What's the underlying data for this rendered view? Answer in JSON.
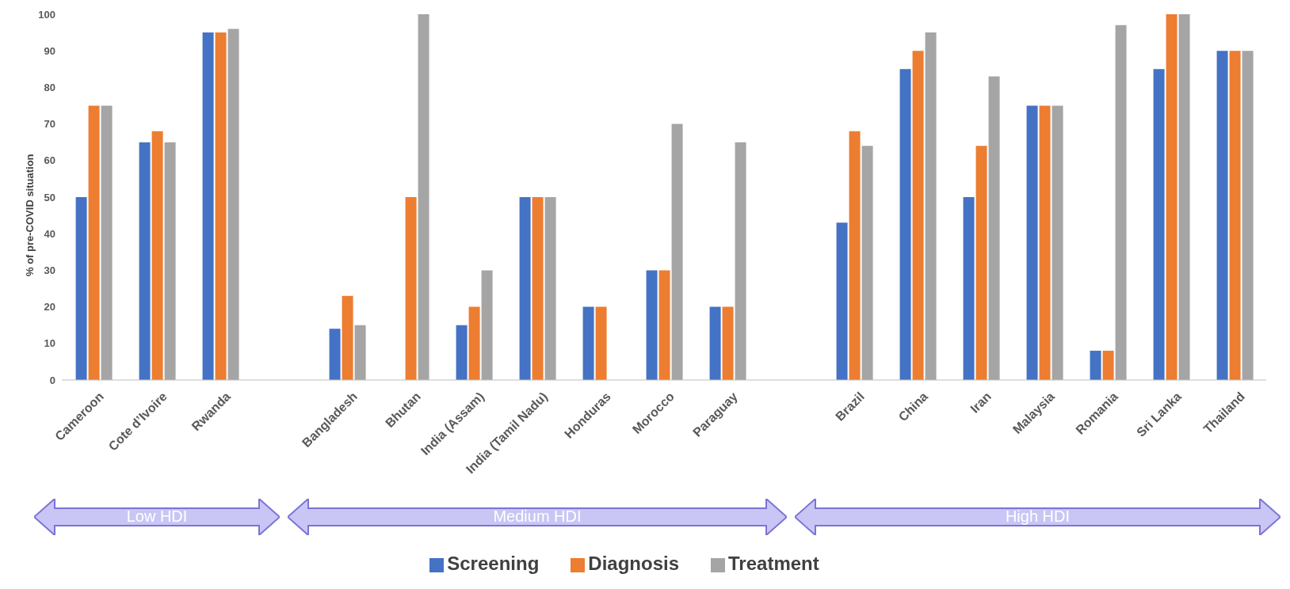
{
  "chart_data": {
    "type": "bar",
    "ylabel": "% of pre-COVID situation",
    "categories": [
      "Cameroon",
      "Cote d’Ivoire",
      "Rwanda",
      null,
      "Bangladesh",
      "Bhutan",
      "India (Assam)",
      "India (Tamil Nadu)",
      "Honduras",
      "Morocco",
      "Paraguay",
      null,
      "Brazil",
      "China",
      "Iran",
      "Malaysia",
      "Romania",
      "Sri Lanka",
      "Thailand"
    ],
    "series": [
      {
        "name": "Screening",
        "color": "#4472c4",
        "values": [
          50,
          65,
          95,
          null,
          14,
          null,
          15,
          50,
          20,
          30,
          20,
          null,
          43,
          85,
          50,
          75,
          8,
          85,
          90
        ]
      },
      {
        "name": "Diagnosis",
        "color": "#ed7d31",
        "values": [
          75,
          68,
          95,
          null,
          23,
          50,
          20,
          50,
          20,
          30,
          20,
          null,
          68,
          90,
          64,
          75,
          8,
          100,
          90
        ]
      },
      {
        "name": "Treatment",
        "color": "#a5a5a5",
        "values": [
          75,
          65,
          96,
          null,
          15,
          100,
          30,
          50,
          null,
          70,
          65,
          null,
          64,
          95,
          83,
          75,
          97,
          100,
          90
        ]
      }
    ],
    "ylim": [
      0,
      100
    ],
    "yticks": [
      0,
      10,
      20,
      30,
      40,
      50,
      60,
      70,
      80,
      90,
      100
    ],
    "grid": false,
    "legend": "bottom",
    "annotations": [
      "Low HDI",
      "Medium HDI",
      "High HDI"
    ]
  }
}
